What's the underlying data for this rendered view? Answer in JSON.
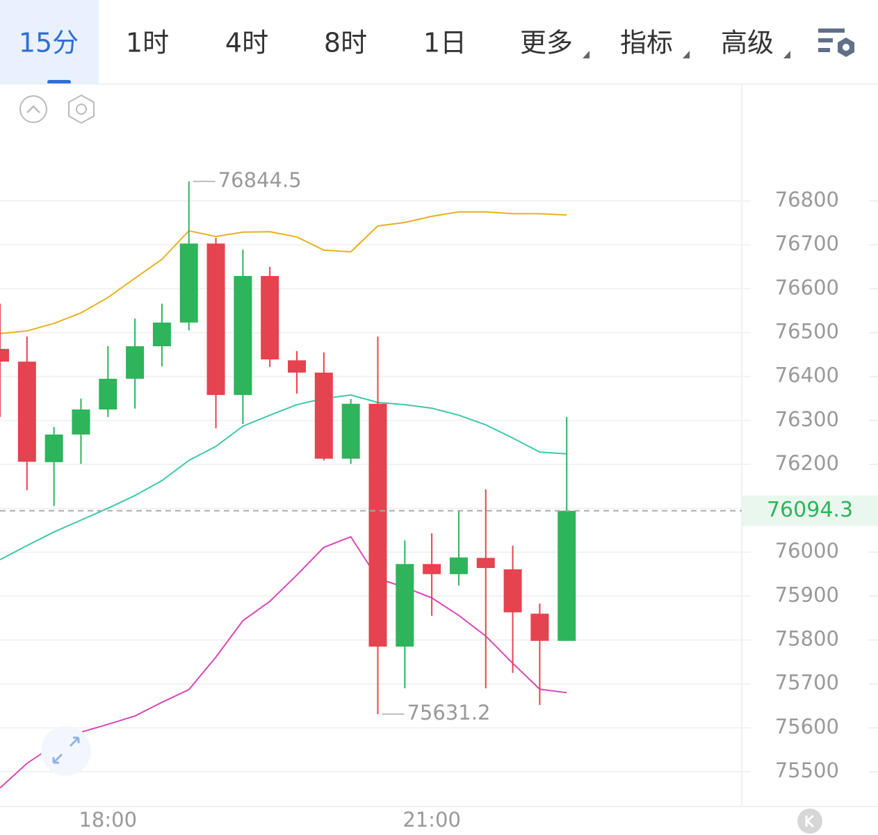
{
  "toolbar": {
    "tabs": [
      "15分",
      "1时",
      "4时",
      "8时",
      "1日",
      "更多",
      "指标",
      "高级"
    ],
    "active": 0
  },
  "chart_data": {
    "type": "candlestick",
    "categories": [
      null,
      null,
      null,
      null,
      "18:00",
      null,
      null,
      null,
      null,
      null,
      null,
      null,
      null,
      null,
      null,
      null,
      "21:00",
      null,
      null,
      null,
      null,
      null
    ],
    "open": [
      76463,
      76434,
      76205,
      76268,
      76325,
      76395,
      76469,
      76523,
      76703,
      76358,
      76629,
      76437,
      76409,
      76213,
      76338,
      75785,
      75973,
      75950,
      75987,
      75961,
      75860,
      75798
    ],
    "high": [
      76566,
      76491,
      76285,
      76350,
      76469,
      76532,
      76566,
      76844.5,
      76716,
      76689,
      76650,
      76458,
      76455,
      76349,
      76491,
      76027,
      76043,
      76095,
      76143,
      76015,
      75883,
      76308
    ],
    "low": [
      76308,
      76141,
      76105,
      76201,
      76308,
      76327,
      76423,
      76505,
      76282,
      76292,
      76422,
      76361,
      76209,
      76201,
      75631.2,
      75690,
      75855,
      75924,
      75690,
      75725,
      75652,
      75798
    ],
    "close": [
      76434,
      76206,
      76268,
      76325,
      76395,
      76469,
      76523,
      76703,
      76358,
      76629,
      76439,
      76409,
      76213,
      76338,
      75785,
      75973,
      75950,
      75988,
      75964,
      75863,
      75798,
      76094.3
    ],
    "up_color": "#2eb45a",
    "down_color": "#e5434f",
    "bands": [
      {
        "color": "#e8b021",
        "values": [
          76498,
          76504,
          76521,
          76545,
          76580,
          76624,
          76667,
          76732,
          76719,
          76729,
          76730,
          76718,
          76688,
          76684,
          76743,
          76751,
          76765,
          76775,
          76775,
          76771,
          76771,
          76768
        ]
      },
      {
        "color": "#3cc8a8",
        "values": [
          75983,
          76015,
          76046,
          76073,
          76100,
          76129,
          76163,
          76209,
          76241,
          76287,
          76312,
          76336,
          76350,
          76358,
          76341,
          76336,
          76328,
          76312,
          76290,
          76260,
          76228,
          76224
        ]
      },
      {
        "color": "#d946b8",
        "values": [
          75463,
          75519,
          75560,
          75590,
          75608,
          75627,
          75658,
          75687,
          75761,
          75844,
          75888,
          75948,
          76011,
          76035,
          75940,
          75920,
          75896,
          75856,
          75809,
          75747,
          75688,
          75680
        ]
      }
    ],
    "ylim": [
      75420,
      77070
    ],
    "yticks": [
      75500,
      75600,
      75700,
      75800,
      75900,
      76000,
      76100,
      76200,
      76300,
      76400,
      76500,
      76600,
      76700,
      76800
    ],
    "grid": true
  }
}
